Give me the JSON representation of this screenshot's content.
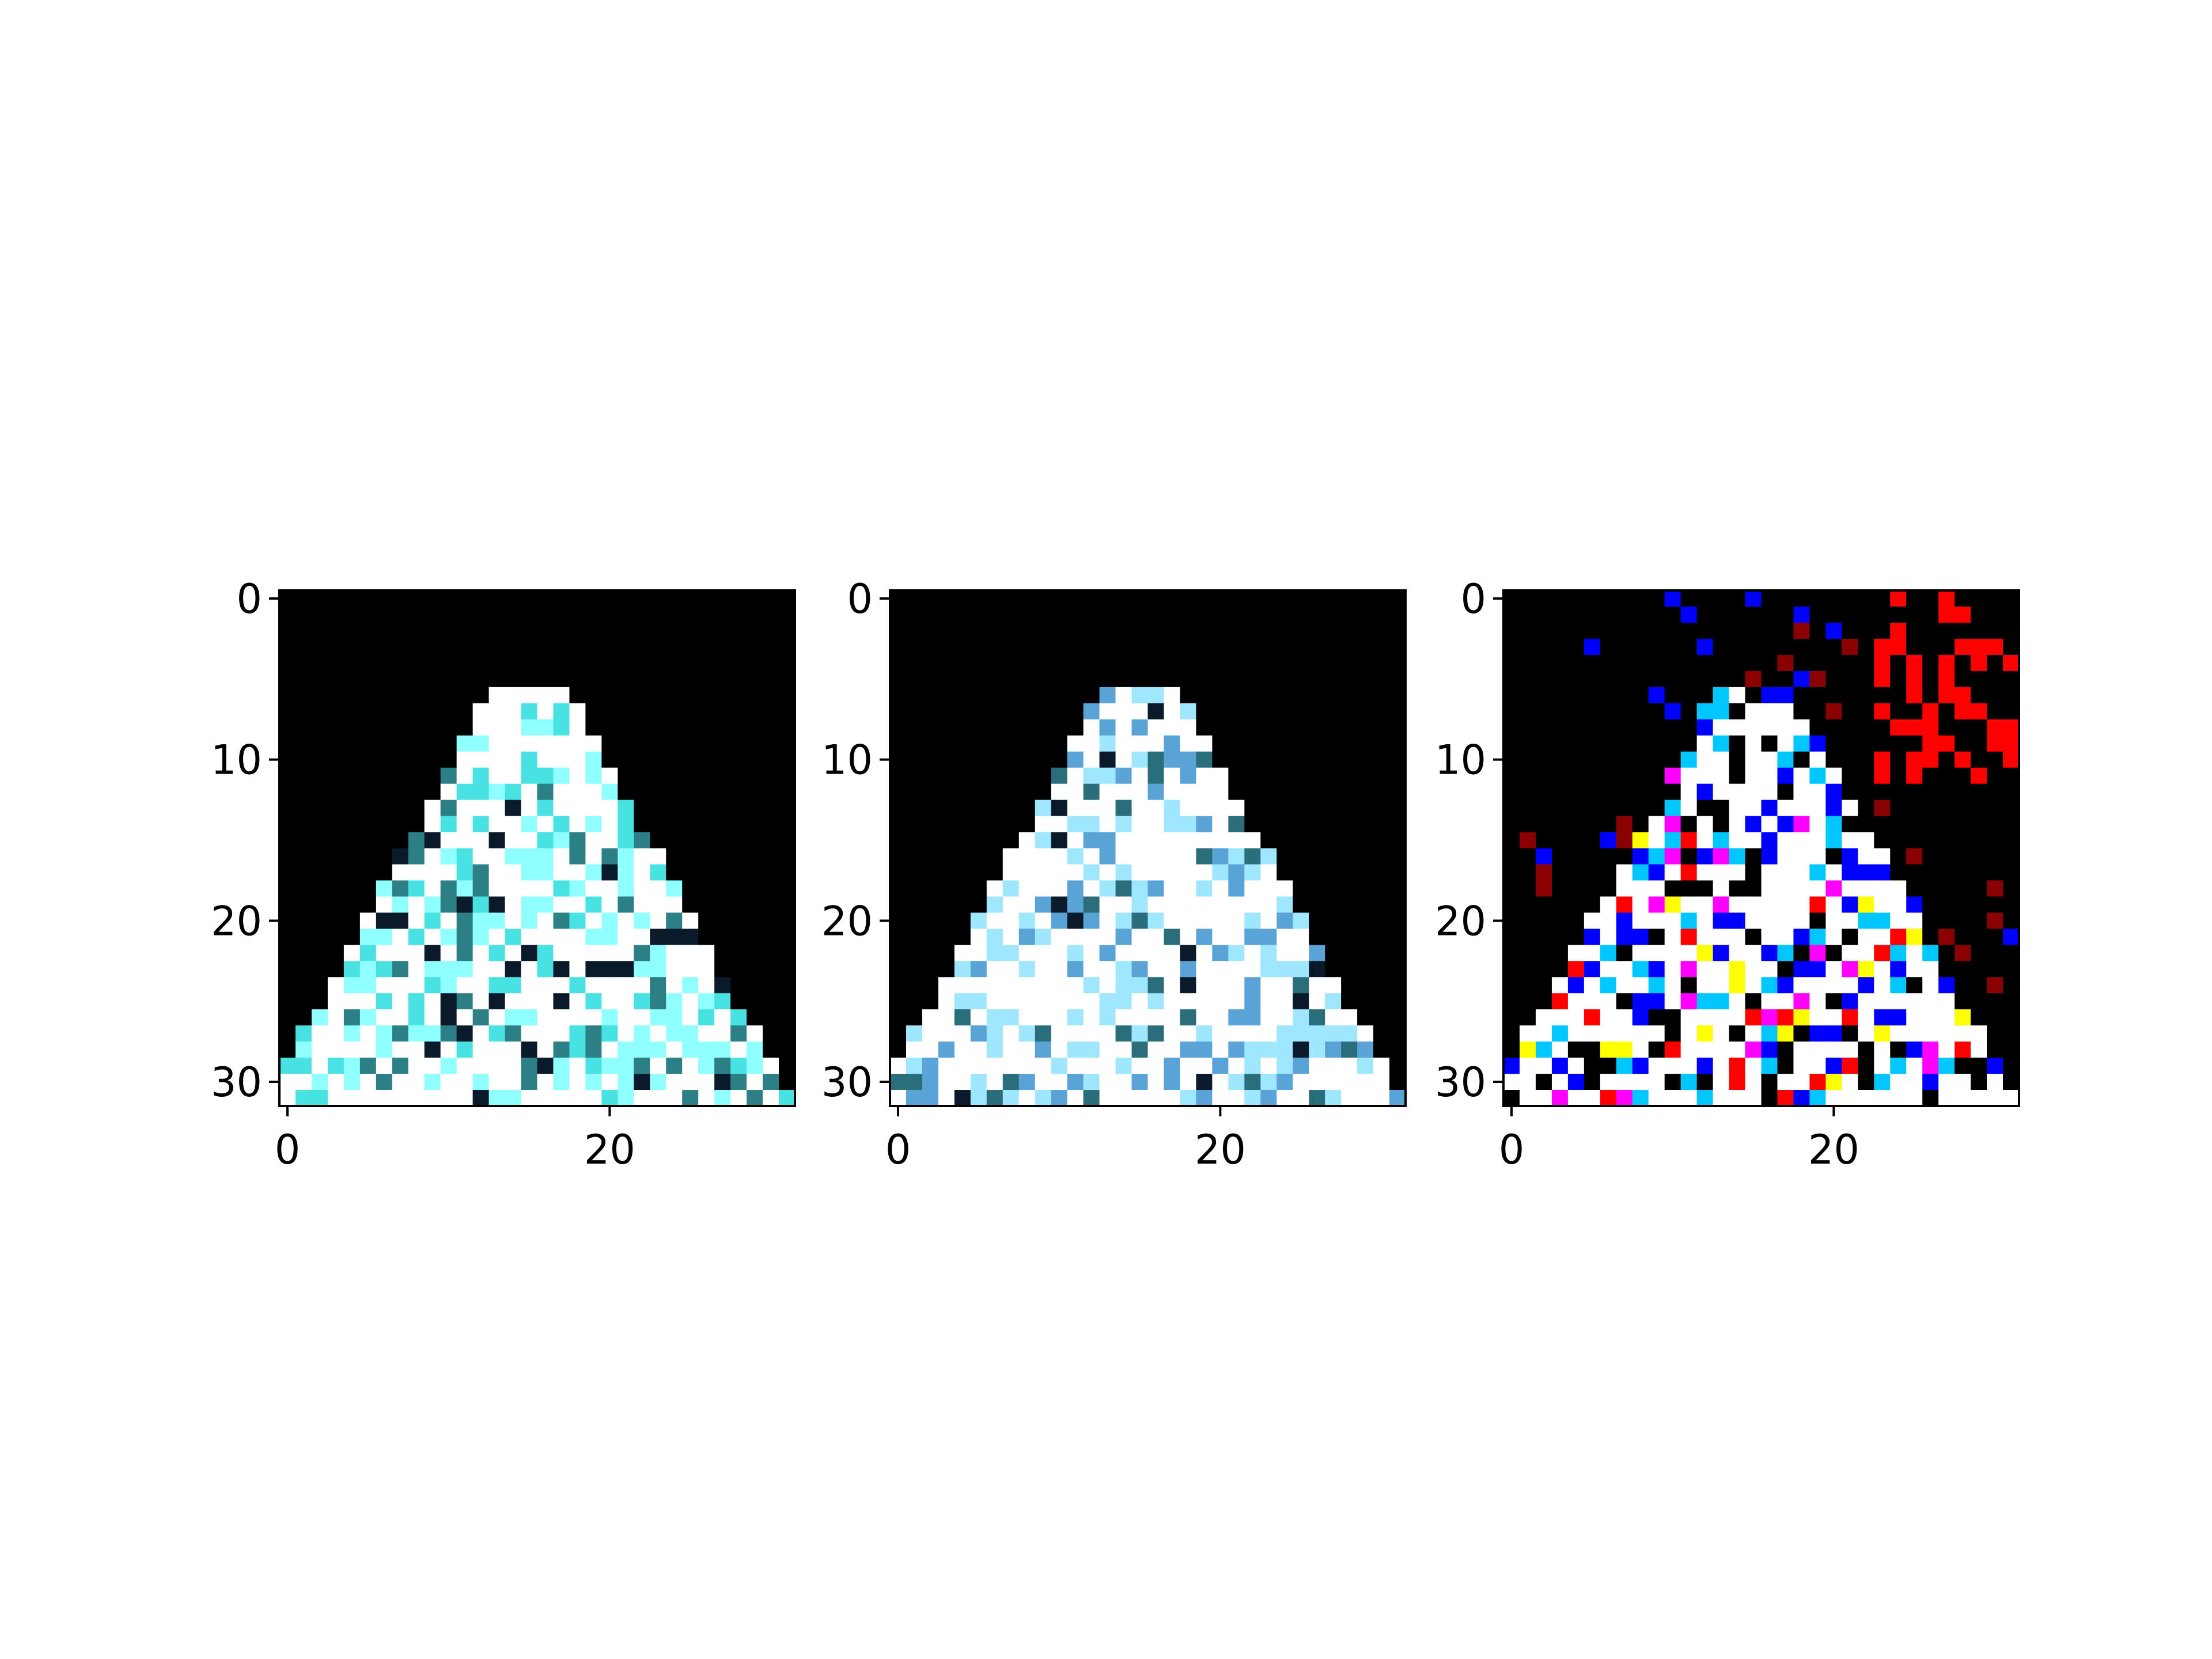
{
  "figure": {
    "background": "#ffffff",
    "panels": [
      {
        "id": "panel-1",
        "description_style": "cyan-white blurred image",
        "xticks": [
          {
            "value": 0,
            "label": "0"
          },
          {
            "value": 20,
            "label": "20"
          }
        ],
        "yticks": [
          {
            "value": 0,
            "label": "0"
          },
          {
            "value": 10,
            "label": "10"
          },
          {
            "value": 20,
            "label": "20"
          },
          {
            "value": 30,
            "label": "30"
          }
        ],
        "pixel_grid": 32,
        "colors": [
          "#000000",
          "#ffffff",
          "#8fffff",
          "#49e2e2",
          "#2d7f86",
          "#0b1a2b"
        ]
      },
      {
        "id": "panel-2",
        "description_style": "blue-white smoother image",
        "xticks": [
          {
            "value": 0,
            "label": "0"
          },
          {
            "value": 20,
            "label": "20"
          }
        ],
        "yticks": [
          {
            "value": 0,
            "label": "0"
          },
          {
            "value": 10,
            "label": "10"
          },
          {
            "value": 20,
            "label": "20"
          },
          {
            "value": 30,
            "label": "30"
          }
        ],
        "pixel_grid": 32,
        "colors": [
          "#000000",
          "#ffffff",
          "#9fe7ff",
          "#5aa3d6",
          "#2b6e7b",
          "#0a1a2b"
        ]
      },
      {
        "id": "panel-3",
        "description_style": "high-contrast colored noise image",
        "xticks": [
          {
            "value": 0,
            "label": "0"
          },
          {
            "value": 20,
            "label": "20"
          }
        ],
        "yticks": [
          {
            "value": 0,
            "label": "0"
          },
          {
            "value": 10,
            "label": "10"
          },
          {
            "value": 20,
            "label": "20"
          },
          {
            "value": 30,
            "label": "30"
          }
        ],
        "pixel_grid": 32,
        "colors": [
          "#000000",
          "#ffffff",
          "#ff0000",
          "#0000ff",
          "#00c8ff",
          "#ff00ff",
          "#ffff00",
          "#8b0000"
        ]
      }
    ]
  }
}
